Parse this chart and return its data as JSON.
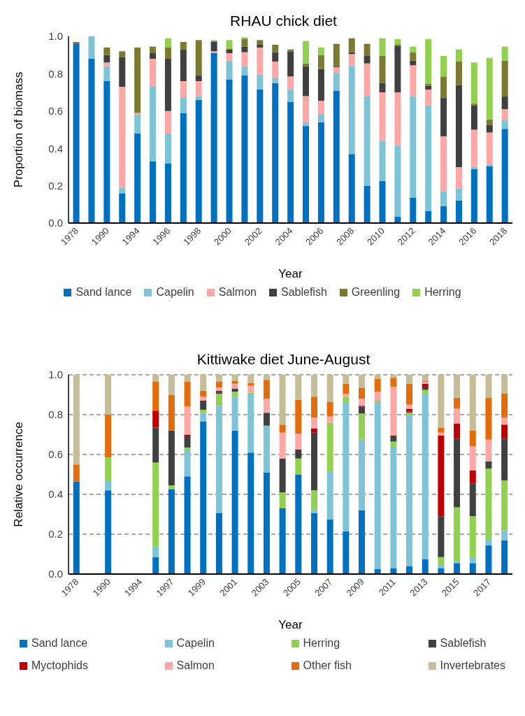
{
  "chart_data": [
    {
      "type": "bar",
      "title": "RHAU chick diet",
      "xlabel": "Year",
      "ylabel": "Proportion of biomass",
      "stacked": true,
      "legend": "bottom",
      "categories": [
        "1978",
        null,
        "1990",
        null,
        "1994",
        null,
        "1996",
        null,
        "1998",
        null,
        "2000",
        null,
        "2002",
        null,
        "2004",
        null,
        "2006",
        null,
        "2008",
        null,
        "2010",
        null,
        "2012",
        null,
        "2014",
        null,
        "2016",
        null,
        "2018"
      ],
      "ylim": [
        0,
        1
      ],
      "yticks": [
        {
          "value": 0,
          "label": "0.0"
        },
        {
          "value": 0.2,
          "label": "0.2"
        },
        {
          "value": 0.4,
          "label": "0.4"
        },
        {
          "value": 0.6,
          "label": "0.6"
        },
        {
          "value": 0.8,
          "label": "0.8"
        },
        {
          "value": 1,
          "label": "1.0"
        }
      ],
      "series": [
        {
          "name": "Sand lance",
          "color": "#0070c0",
          "values": [
            0.96,
            0.88,
            0.76,
            0.16,
            0.48,
            0.33,
            0.32,
            0.59,
            0.66,
            0.91,
            0.77,
            0.79,
            0.715,
            0.75,
            0.65,
            0.52,
            0.54,
            0.71,
            0.37,
            0.2,
            0.225,
            0.035,
            0.135,
            0.065,
            0.09,
            0.12,
            0.29,
            0.305,
            0.505
          ]
        },
        {
          "name": "Capelin",
          "color": "#7fc3d6",
          "values": [
            0,
            0.12,
            0.08,
            0.03,
            0.1,
            0.4,
            0.16,
            0.08,
            0.02,
            0,
            0.1,
            0.05,
            0.08,
            0.03,
            0.065,
            0.02,
            0.045,
            0.095,
            0.475,
            0.48,
            0.215,
            0.38,
            0.545,
            0.565,
            0.08,
            0.065,
            0.01,
            0.01,
            0.045
          ]
        },
        {
          "name": "Salmon",
          "color": "#ffa7a7",
          "values": [
            0,
            0,
            0.02,
            0.54,
            0.01,
            0.15,
            0.12,
            0.09,
            0.08,
            0.01,
            0.04,
            0.075,
            0.145,
            0.085,
            0.07,
            0.14,
            0.07,
            0.03,
            0.06,
            0.175,
            0.26,
            0.285,
            0.165,
            0.085,
            0.295,
            0.115,
            0.2,
            0.17,
            0.06
          ]
        },
        {
          "name": "Sablefish",
          "color": "#404040",
          "values": [
            0.005,
            0,
            0.04,
            0.16,
            0,
            0.03,
            0.28,
            0.17,
            0.03,
            0.05,
            0.02,
            0.03,
            0.015,
            0.05,
            0.135,
            0.16,
            0.17,
            0.005,
            0.01,
            0.04,
            0.05,
            0.25,
            0.025,
            0.02,
            0.205,
            0.44,
            0.13,
            0.04,
            0.07
          ]
        },
        {
          "name": "Greenling",
          "color": "#7a7a32",
          "values": [
            0.005,
            0,
            0.04,
            0.03,
            0.35,
            0.035,
            0.06,
            0.04,
            0.19,
            0.005,
            0.005,
            0.04,
            0.025,
            0.04,
            0.01,
            0.015,
            0.075,
            0.12,
            0.075,
            0.065,
            0.145,
            0.005,
            0.045,
            0.01,
            0.115,
            0.125,
            0.01,
            0.03,
            0.19
          ]
        },
        {
          "name": "Herring",
          "color": "#92d050",
          "values": [
            0,
            0,
            0,
            0,
            0,
            0,
            0.05,
            0,
            0,
            0.005,
            0.045,
            0.01,
            0,
            0,
            0,
            0.12,
            0.04,
            0,
            0,
            0,
            0.095,
            0.03,
            0.03,
            0.24,
            0.11,
            0.065,
            0.22,
            0.33,
            0.075
          ]
        }
      ]
    },
    {
      "type": "bar",
      "title": "Kittiwake diet June-August",
      "xlabel": "Year",
      "ylabel": "Relative occurrence",
      "stacked": true,
      "legend": "bottom",
      "grid": "y",
      "categories": [
        "1978",
        null,
        "1990",
        null,
        "1994",
        null,
        "1997",
        null,
        "1999",
        null,
        "2001",
        null,
        "2003",
        null,
        "2005",
        null,
        "2007",
        null,
        "2009",
        null,
        "2011",
        null,
        "2013",
        null,
        "2015",
        null,
        "2017",
        null
      ],
      "ylim": [
        0,
        1
      ],
      "yticks": [
        {
          "value": 0,
          "label": "0.0"
        },
        {
          "value": 0.2,
          "label": "0.2"
        },
        {
          "value": 0.4,
          "label": "0.4"
        },
        {
          "value": 0.6,
          "label": "0.6"
        },
        {
          "value": 0.8,
          "label": "0.8"
        },
        {
          "value": 1,
          "label": "1.0"
        }
      ],
      "series": [
        {
          "name": "Sand lance",
          "color": "#0070c0",
          "values": [
            0.465,
            null,
            0.42,
            null,
            null,
            0.085,
            0.425,
            0.49,
            0.765,
            0.305,
            0.72,
            0.61,
            0.51,
            0.33,
            0.5,
            0.305,
            0.275,
            0.215,
            0.32,
            0.025,
            0.03,
            0.04,
            0.075,
            0.03,
            0.055,
            0.055,
            0.145,
            0.17
          ]
        },
        {
          "name": "Capelin",
          "color": "#7fc3d6",
          "values": [
            0,
            null,
            0.05,
            null,
            null,
            0.055,
            0,
            0.135,
            0.045,
            0.54,
            0.17,
            0.295,
            0.235,
            0,
            0,
            0.015,
            0.24,
            0.645,
            0.355,
            0.835,
            0.605,
            0.76,
            0.83,
            0.015,
            0.005,
            0.03,
            0.03,
            0.05
          ]
        },
        {
          "name": "Herring",
          "color": "#92d050",
          "values": [
            0,
            null,
            0.115,
            null,
            null,
            0.42,
            0.02,
            0.01,
            0.015,
            0.06,
            0.025,
            0.005,
            0,
            0.08,
            0.08,
            0.1,
            0.245,
            0.03,
            0.13,
            0.01,
            0.03,
            0.01,
            0.02,
            0.04,
            0.275,
            0.205,
            0.355,
            0.25
          ]
        },
        {
          "name": "Sablefish",
          "color": "#404040",
          "values": [
            0,
            null,
            0,
            null,
            null,
            0.175,
            0.275,
            0.06,
            0.045,
            0.01,
            0.015,
            0,
            0.065,
            0.17,
            0.045,
            0.29,
            0,
            0,
            0.035,
            0,
            0.03,
            0.005,
            0.015,
            0.205,
            0.345,
            0.165,
            0.035,
            0.21
          ]
        },
        {
          "name": "Myctophids",
          "color": "#c00000",
          "values": [
            0,
            null,
            0,
            null,
            null,
            0.085,
            0,
            0.005,
            0,
            0.005,
            0,
            0,
            0,
            0,
            0,
            0.02,
            0,
            0,
            0.005,
            0,
            0,
            0.015,
            0.015,
            0.405,
            0.075,
            0.065,
            0,
            0.07
          ]
        },
        {
          "name": "Salmon",
          "color": "#ffa7a7",
          "values": [
            0,
            null,
            0,
            null,
            null,
            0,
            0,
            0.14,
            0.02,
            0.015,
            0.025,
            0.035,
            0.07,
            0.13,
            0.08,
            0.055,
            0.03,
            0.015,
            0.035,
            0.045,
            0.245,
            0.02,
            0.01,
            0.015,
            0.075,
            0.12,
            0.11,
            0.035
          ]
        },
        {
          "name": "Other fish",
          "color": "#e46c0a",
          "values": [
            0.085,
            null,
            0.215,
            null,
            null,
            0.145,
            0.18,
            0.125,
            0.03,
            0.03,
            0.015,
            0.015,
            0.095,
            0.04,
            0.17,
            0.105,
            0.075,
            0.05,
            0.055,
            0.065,
            0.045,
            0.105,
            0.005,
            0.025,
            0.055,
            0.08,
            0.21,
            0.12
          ]
        },
        {
          "name": "Invertebrates",
          "color": "#c4bd97",
          "values": [
            0.45,
            null,
            0.2,
            null,
            null,
            0.035,
            0.1,
            0.035,
            0.08,
            0.035,
            0.03,
            0.04,
            0.025,
            0.25,
            0.125,
            0.11,
            0.135,
            0.045,
            0.065,
            0.02,
            0.015,
            0.045,
            0.03,
            0.265,
            0.115,
            0.28,
            0.115,
            0.095
          ]
        }
      ]
    }
  ]
}
